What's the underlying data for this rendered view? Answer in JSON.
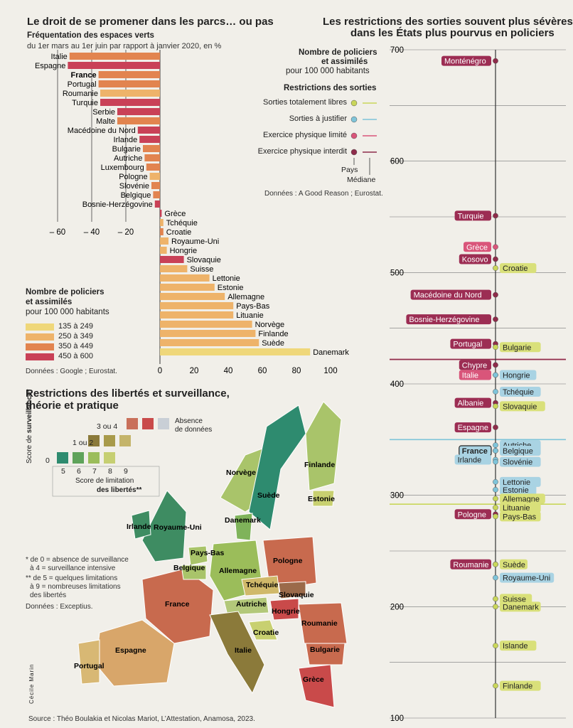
{
  "left": {
    "title": "Le droit de se promener dans les parcs… ou pas",
    "subtitle": "Fréquentation des espaces verts",
    "subtitle2": "du 1er mars au 1er juin par rapport à janvier 2020, en %",
    "legend_title1": "Nombre de policiers",
    "legend_title2": "et assimilés",
    "legend_title3": "pour 100 000 habitants",
    "legend": [
      {
        "label": "135 à 249",
        "color": "#efd77a"
      },
      {
        "label": "250 à 349",
        "color": "#eeb36a"
      },
      {
        "label": "350 à 449",
        "color": "#e2844f"
      },
      {
        "label": "450 à 600",
        "color": "#c94157"
      }
    ],
    "source": "Données : Google ; Eurostat."
  },
  "right": {
    "title1": "Les restrictions des sorties souvent plus sévères",
    "title2": "dans les États plus pourvus en policiers",
    "legend_title1": "Nombre de policiers",
    "legend_title2": "et assimilés",
    "legend_title3": "pour 100 000 habitants",
    "restr_title": "Restrictions des sorties",
    "restr": [
      {
        "label": "Sorties totalement libres",
        "color": "#c9d65a"
      },
      {
        "label": "Sorties à justifier",
        "color": "#7fc4d9"
      },
      {
        "label": "Exercice physique limité",
        "color": "#d9557a"
      },
      {
        "label": "Exercice physique interdit",
        "color": "#8e2c4a"
      }
    ],
    "pays_label": "Pays",
    "mediane_label": "Médiane",
    "source": "Données : A Good Reason ; Eurostat."
  },
  "map": {
    "title1": "Restrictions des libertés et surveillance,",
    "title2": "théorie et pratique",
    "absence": "Absence",
    "absence2": "de données",
    "surv_axis1": "Score de",
    "surv_axis2": "surveillance*",
    "row_3ou4": "3 ou 4",
    "row_1ou2": "1 ou 2",
    "row_0": "0",
    "lim_ticks": [
      "5",
      "6",
      "7",
      "8",
      "9"
    ],
    "lim_axis1": "Score de limitation",
    "lim_axis2": "des libertés**",
    "note1": "* de 0 = absence de surveillance",
    "note2": "à 4 = surveillance intensive",
    "note3": "** de 5 = quelques limitations",
    "note4": "à 9 = nombreuses limitations",
    "note5": "des libertés",
    "source": "Données : Exceptius.",
    "credit": "Cécile Marin",
    "labels": [
      "Norvège",
      "Suède",
      "Finlande",
      "Estonie",
      "Danemark",
      "Irlande",
      "Royaume-Uni",
      "Pays-Bas",
      "Belgique",
      "Allemagne",
      "Pologne",
      "Tchéquie",
      "Slovaquie",
      "France",
      "Autriche",
      "Hongrie",
      "Roumanie",
      "Croatie",
      "Bulgarie",
      "Italie",
      "Espagne",
      "Portugal",
      "Grèce"
    ]
  },
  "source_main": "Source : Théo Boulakia et Nicolas Mariot, L’Attestation, Anamosa, 2023.",
  "chart_data": [
    {
      "type": "bar",
      "orientation": "horizontal",
      "title": "Le droit de se promener dans les parcs… ou pas",
      "xlim": [
        -60,
        100
      ],
      "ticks": [
        -60,
        -40,
        -20,
        0,
        20,
        40,
        60,
        80,
        100
      ],
      "categories": [
        "Italie",
        "Espagne",
        "France",
        "Portugal",
        "Roumanie",
        "Turquie",
        "Serbie",
        "Malte",
        "Macédoine du Nord",
        "Irlande",
        "Bulgarie",
        "Autriche",
        "Luxembourg",
        "Pologne",
        "Slovénie",
        "Belgique",
        "Bosnie-Herzégovine",
        "Grèce",
        "Tchéquie",
        "Croatie",
        "Royaume-Uni",
        "Hongrie",
        "Slovaquie",
        "Suisse",
        "Lettonie",
        "Estonie",
        "Allemagne",
        "Pays-Bas",
        "Lituanie",
        "Norvège",
        "Finlande",
        "Suède",
        "Danemark"
      ],
      "values": [
        -53,
        -54,
        -36,
        -36,
        -35,
        -35,
        -25,
        -25,
        -13,
        -12,
        -10,
        -9,
        -8,
        -6,
        -5,
        -4,
        -3,
        1,
        2,
        2,
        5,
        4,
        14,
        16,
        29,
        32,
        38,
        43,
        43,
        54,
        56,
        58,
        88
      ],
      "police_class": [
        2,
        3,
        2,
        2,
        1,
        3,
        3,
        2,
        3,
        3,
        2,
        2,
        2,
        1,
        2,
        2,
        3,
        3,
        1,
        2,
        1,
        1,
        3,
        1,
        1,
        1,
        1,
        1,
        1,
        1,
        1,
        1,
        0
      ],
      "bold_categories": [
        "France"
      ]
    },
    {
      "type": "scatter",
      "title": "Les restrictions des sorties souvent plus sévères dans les États plus pourvus en policiers",
      "ylim": [
        100,
        700
      ],
      "ticks": [
        100,
        200,
        300,
        400,
        500,
        600,
        700
      ],
      "median_lines": [
        {
          "restriction": "Sorties totalement libres",
          "value": 292
        },
        {
          "restriction": "Sorties à justifier",
          "value": 350
        },
        {
          "restriction": "Exercice physique limité",
          "value": 422
        },
        {
          "restriction": "Exercice physique interdit",
          "value": 422
        }
      ],
      "points": [
        {
          "name": "Monténégro",
          "y": 690,
          "restriction": "interdit",
          "side": "left"
        },
        {
          "name": "Turquie",
          "y": 551,
          "restriction": "interdit",
          "side": "left"
        },
        {
          "name": "Grèce",
          "y": 523,
          "restriction": "limite",
          "side": "left"
        },
        {
          "name": "Kosovo",
          "y": 512,
          "restriction": "interdit",
          "side": "left"
        },
        {
          "name": "Croatie",
          "y": 504,
          "restriction": "libre",
          "side": "right"
        },
        {
          "name": "Macédoine du Nord",
          "y": 480,
          "restriction": "interdit",
          "side": "left"
        },
        {
          "name": "Bosnie-Herzégovine",
          "y": 458,
          "restriction": "interdit",
          "side": "left"
        },
        {
          "name": "Portugal",
          "y": 436,
          "restriction": "interdit",
          "side": "left"
        },
        {
          "name": "Bulgarie",
          "y": 433,
          "restriction": "libre",
          "side": "right"
        },
        {
          "name": "Chypre",
          "y": 417,
          "restriction": "interdit",
          "side": "left"
        },
        {
          "name": "Italie",
          "y": 408,
          "restriction": "limite",
          "side": "left"
        },
        {
          "name": "Hongrie",
          "y": 408,
          "restriction": "justifier",
          "side": "right"
        },
        {
          "name": "Tchéquie",
          "y": 393,
          "restriction": "justifier",
          "side": "right"
        },
        {
          "name": "Albanie",
          "y": 383,
          "restriction": "interdit",
          "side": "left"
        },
        {
          "name": "Slovaquie",
          "y": 380,
          "restriction": "libre",
          "side": "right"
        },
        {
          "name": "Espagne",
          "y": 361,
          "restriction": "interdit",
          "side": "left"
        },
        {
          "name": "Autriche",
          "y": 345,
          "restriction": "justifier",
          "side": "right"
        },
        {
          "name": "France",
          "y": 340,
          "restriction": "justifier",
          "side": "left",
          "bold": true
        },
        {
          "name": "Belgique",
          "y": 340,
          "restriction": "justifier",
          "side": "right"
        },
        {
          "name": "Irlande",
          "y": 332,
          "restriction": "justifier",
          "side": "left"
        },
        {
          "name": "Slovénie",
          "y": 330,
          "restriction": "justifier",
          "side": "right"
        },
        {
          "name": "Lettonie",
          "y": 312,
          "restriction": "justifier",
          "side": "right"
        },
        {
          "name": "Estonie",
          "y": 305,
          "restriction": "justifier",
          "side": "right"
        },
        {
          "name": "Allemagne",
          "y": 297,
          "restriction": "libre",
          "side": "right"
        },
        {
          "name": "Lituanie",
          "y": 289,
          "restriction": "libre",
          "side": "right"
        },
        {
          "name": "Pologne",
          "y": 283,
          "restriction": "interdit",
          "side": "left"
        },
        {
          "name": "Pays-Bas",
          "y": 281,
          "restriction": "libre",
          "side": "right"
        },
        {
          "name": "Roumanie",
          "y": 238,
          "restriction": "interdit",
          "side": "left"
        },
        {
          "name": "Suède",
          "y": 238,
          "restriction": "libre",
          "side": "right"
        },
        {
          "name": "Royaume-Uni",
          "y": 226,
          "restriction": "justifier",
          "side": "right"
        },
        {
          "name": "Suisse",
          "y": 207,
          "restriction": "libre",
          "side": "right"
        },
        {
          "name": "Danemark",
          "y": 200,
          "restriction": "libre",
          "side": "right"
        },
        {
          "name": "Islande",
          "y": 165,
          "restriction": "libre",
          "side": "right"
        },
        {
          "name": "Finlande",
          "y": 129,
          "restriction": "libre",
          "side": "right"
        }
      ]
    }
  ]
}
